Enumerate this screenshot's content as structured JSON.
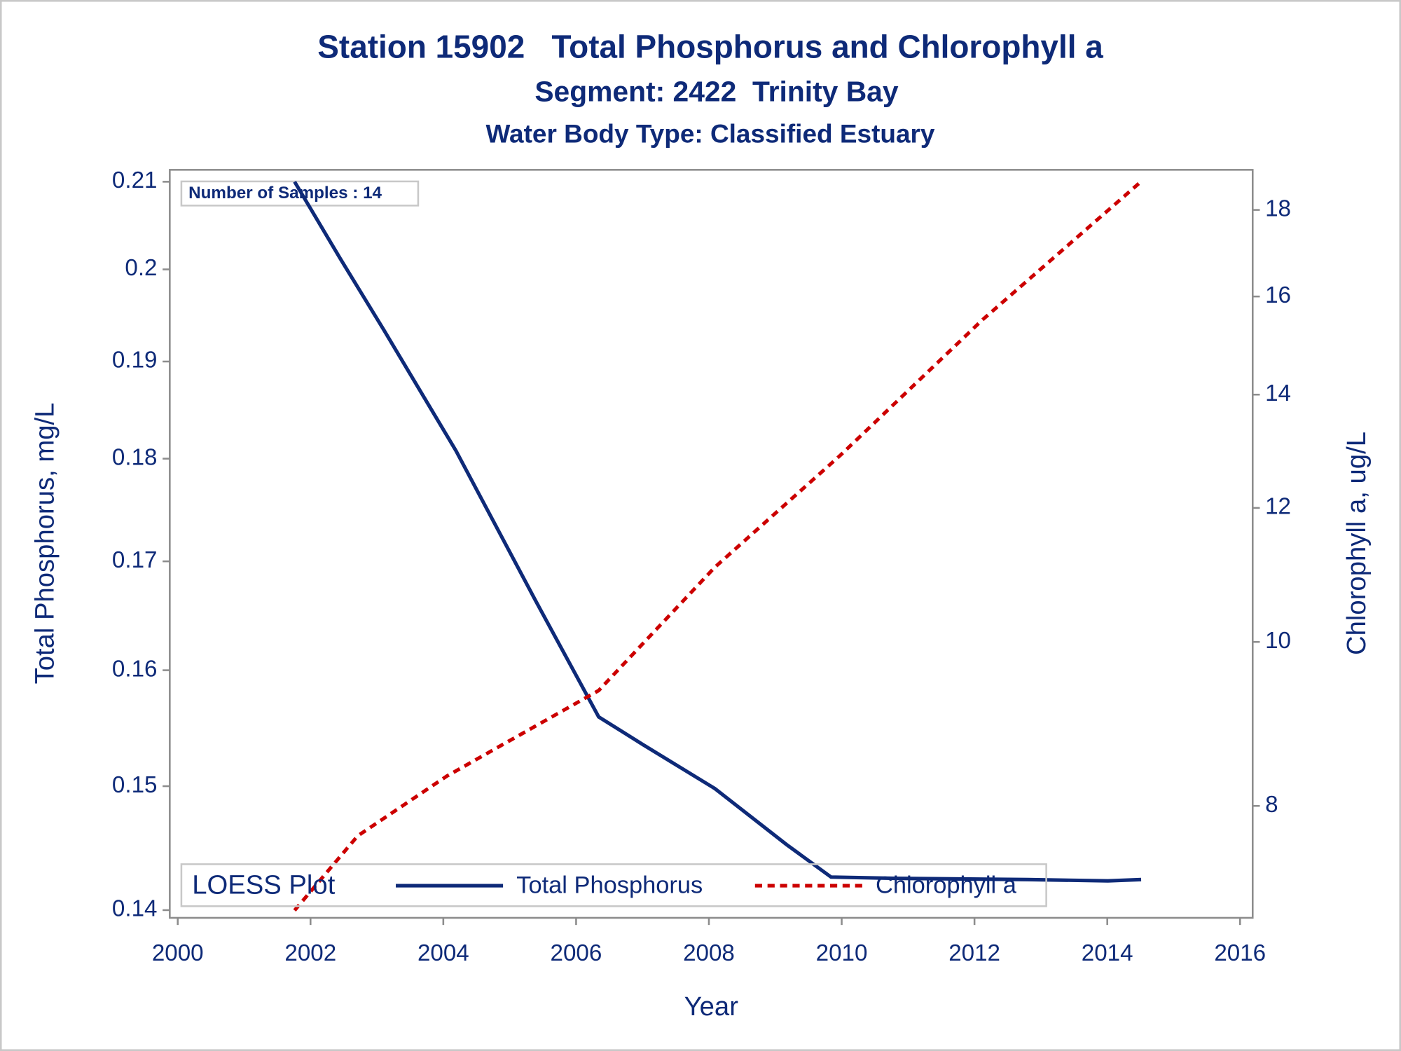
{
  "chart_data": {
    "type": "line",
    "title": "Station 15902   Total Phosphorus and Chlorophyll a",
    "subtitles": [
      "Segment: 2422  Trinity Bay",
      "Water Body Type: Classified Estuary"
    ],
    "annotation": "Number of Samples : 14",
    "x_label": "Year",
    "y_label": "Total Phosphorus, mg/L",
    "y2_label": "Chlorophyll a, ug/L",
    "legend_title": "LOESS Plot",
    "legend": "bottom-left",
    "xlim": [
      1999.88,
      2016.19
    ],
    "xticks": [
      2000,
      2002,
      2004,
      2006,
      2008,
      2010,
      2012,
      2014,
      2016
    ],
    "ylim": [
      0.1394,
      0.2114
    ],
    "yticks": [
      0.14,
      0.15,
      0.16,
      0.17,
      0.18,
      0.19,
      0.2,
      0.21
    ],
    "y_log": true,
    "y2lim": [
      6.87,
      19.01
    ],
    "y2ticks": [
      8,
      10,
      12,
      14,
      16,
      18
    ],
    "y2_log": true,
    "series": [
      {
        "name": "Total Phosphorus",
        "color": "#0e2a78",
        "line_style": "solid",
        "axis": "y",
        "x": [
          2001.76,
          2002.44,
          2003.11,
          2004.19,
          2005.4,
          2006.34,
          2007.01,
          2008.09,
          2009.17,
          2009.84,
          2010.78,
          2012.8,
          2014.01,
          2014.51
        ],
        "values": [
          0.21,
          0.2013,
          0.1933,
          0.1808,
          0.1662,
          0.1559,
          0.1535,
          0.1498,
          0.1452,
          0.1426,
          0.1425,
          0.1424,
          0.1423,
          0.1424
        ]
      },
      {
        "name": "Chlorophyll a",
        "color": "#cc0000",
        "line_style": "dashed",
        "axis": "y2",
        "x": [
          2001.76,
          2002.71,
          2004.05,
          2005.26,
          2006.34,
          2008.09,
          2009.97,
          2012.12,
          2014.51
        ],
        "values": [
          6.94,
          7.68,
          8.33,
          8.86,
          9.36,
          11.07,
          12.88,
          15.5,
          18.71
        ]
      }
    ]
  }
}
